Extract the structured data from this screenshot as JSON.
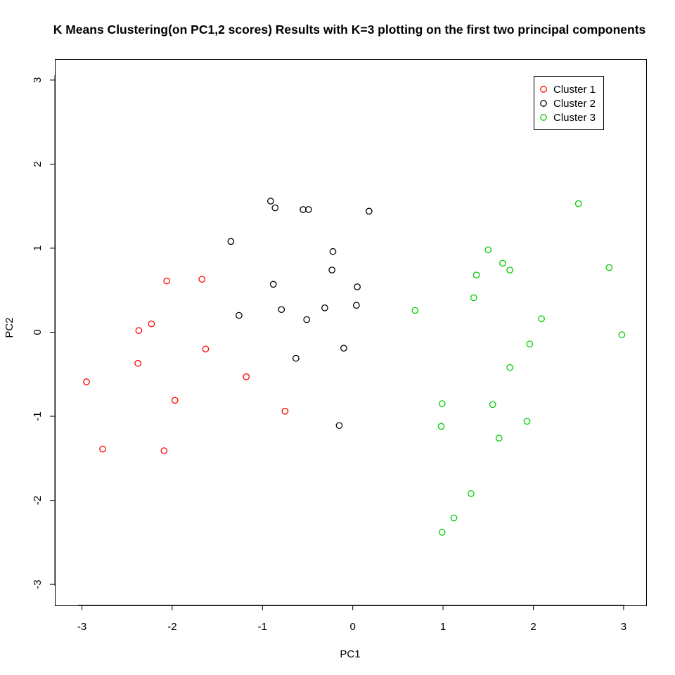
{
  "chart_data": {
    "type": "scatter",
    "title": "K Means Clustering(on PC1,2 scores) Results with K=3 plotting on the first two principal components",
    "xlabel": "PC1",
    "ylabel": "PC2",
    "xlim": [
      -3.3,
      3.25
    ],
    "ylim": [
      -3.25,
      3.25
    ],
    "x_ticks": [
      "-3",
      "-2",
      "-1",
      "0",
      "1",
      "2",
      "3"
    ],
    "y_ticks": [
      "-3",
      "-2",
      "-1",
      "0",
      "1",
      "2",
      "3"
    ],
    "grid": false,
    "legend_position": "top-right",
    "series": [
      {
        "name": "Cluster 1",
        "color": "#ff0000",
        "points": [
          [
            -2.95,
            -0.59
          ],
          [
            -2.77,
            -1.39
          ],
          [
            -2.37,
            0.02
          ],
          [
            -2.38,
            -0.37
          ],
          [
            -2.23,
            0.1
          ],
          [
            -2.06,
            0.61
          ],
          [
            -1.97,
            -0.81
          ],
          [
            -2.09,
            -1.41
          ],
          [
            -1.67,
            0.63
          ],
          [
            -1.63,
            -0.2
          ],
          [
            -1.18,
            -0.53
          ],
          [
            -0.75,
            -0.94
          ]
        ]
      },
      {
        "name": "Cluster 2",
        "color": "#000000",
        "points": [
          [
            -0.91,
            1.56
          ],
          [
            -0.86,
            1.48
          ],
          [
            -0.55,
            1.46
          ],
          [
            -0.49,
            1.46
          ],
          [
            0.18,
            1.44
          ],
          [
            -1.35,
            1.08
          ],
          [
            -0.22,
            0.96
          ],
          [
            -0.23,
            0.74
          ],
          [
            -0.88,
            0.57
          ],
          [
            0.05,
            0.54
          ],
          [
            -1.26,
            0.2
          ],
          [
            -0.79,
            0.27
          ],
          [
            -0.31,
            0.29
          ],
          [
            0.04,
            0.32
          ],
          [
            -0.51,
            0.15
          ],
          [
            -0.63,
            -0.31
          ],
          [
            -0.1,
            -0.19
          ],
          [
            -0.15,
            -1.11
          ]
        ]
      },
      {
        "name": "Cluster 3",
        "color": "#00cd00",
        "points": [
          [
            2.5,
            1.53
          ],
          [
            1.5,
            0.98
          ],
          [
            1.66,
            0.82
          ],
          [
            1.74,
            0.74
          ],
          [
            2.84,
            0.77
          ],
          [
            1.37,
            0.68
          ],
          [
            1.34,
            0.41
          ],
          [
            0.69,
            0.26
          ],
          [
            2.09,
            0.16
          ],
          [
            2.98,
            -0.03
          ],
          [
            1.96,
            -0.14
          ],
          [
            1.74,
            -0.42
          ],
          [
            0.99,
            -0.85
          ],
          [
            1.55,
            -0.86
          ],
          [
            1.93,
            -1.06
          ],
          [
            0.98,
            -1.12
          ],
          [
            1.62,
            -1.26
          ],
          [
            1.31,
            -1.92
          ],
          [
            1.12,
            -2.21
          ],
          [
            0.99,
            -2.38
          ]
        ]
      }
    ]
  }
}
